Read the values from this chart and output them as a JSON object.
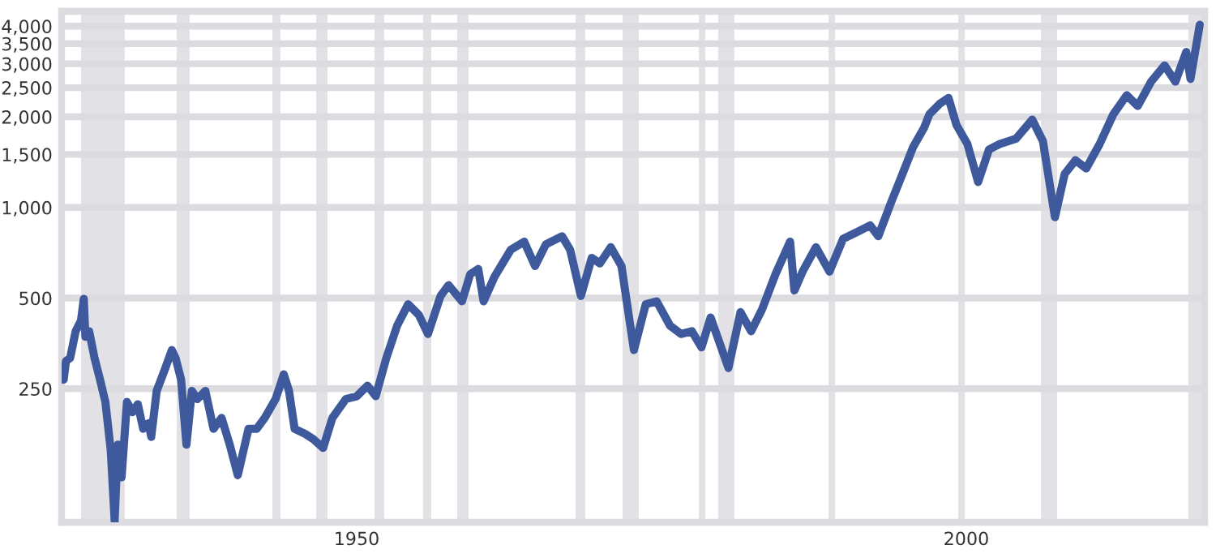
{
  "chart_data": {
    "type": "line",
    "x": [
      1925.97,
      1926.16,
      1926.5,
      1926.95,
      1927.39,
      1927.62,
      1927.75,
      1928.06,
      1928.5,
      1928.95,
      1929.39,
      1929.83,
      1930.15,
      1930.41,
      1930.72,
      1931.16,
      1931.61,
      1932.05,
      1932.49,
      1932.94,
      1933.15,
      1933.6,
      1934.27,
      1934.84,
      1935.15,
      1935.6,
      1936.04,
      1936.48,
      1936.93,
      1937.59,
      1938.26,
      1938.92,
      1939.59,
      1940.25,
      1941.13,
      1941.8,
      1942.46,
      1943.35,
      1944.02,
      1944.45,
      1944.91,
      1945.78,
      1946.45,
      1947.25,
      1948.01,
      1949.11,
      1950,
      1950.89,
      1951.56,
      1952.43,
      1953.32,
      1954.22,
      1955.09,
      1955.85,
      1956.88,
      1957.54,
      1958.64,
      1959.31,
      1959.97,
      1960.41,
      1961.3,
      1962.63,
      1963.74,
      1964.63,
      1965.52,
      1966.85,
      1967.51,
      1968.39,
      1969.28,
      1969.95,
      1970.84,
      1971.72,
      1972.74,
      1973.71,
      1974.6,
      1975.7,
      1976.6,
      1977.49,
      1978.28,
      1979.03,
      1980.49,
      1981.48,
      1982.35,
      1983.24,
      1984.35,
      1985.55,
      1985.9,
      1986.57,
      1987.67,
      1988.78,
      1989.89,
      1991.22,
      1992.11,
      1992.78,
      1993.88,
      1994.77,
      1995.65,
      1996.54,
      1996.98,
      1997.87,
      1998.54,
      1999.2,
      2000.09,
      2000.97,
      2001.86,
      2002.75,
      2004.08,
      2005.41,
      2006.29,
      2007.27,
      2008.07,
      2008.95,
      2009.84,
      2010.94,
      2012.06,
      2013.16,
      2014.06,
      2015.16,
      2016.26,
      2017.15,
      2018.04,
      2018.39,
      2019.15
    ],
    "series": [
      {
        "color": "#3f5a9c",
        "values": [
          268,
          309,
          316,
          388,
          421,
          497,
          372,
          388,
          316,
          268,
          226,
          156,
          91,
          163,
          127,
          226,
          209,
          222,
          184,
          192,
          173,
          246,
          290,
          336,
          316,
          268,
          163,
          246,
          231,
          246,
          184,
          200,
          163,
          129,
          184,
          184,
          200,
          231,
          279,
          246,
          184,
          177,
          170,
          159,
          200,
          231,
          236,
          256,
          236,
          316,
          405,
          477,
          440,
          380,
          508,
          552,
          488,
          600,
          625,
          488,
          588,
          723,
          770,
          639,
          754,
          802,
          723,
          508,
          680,
          652,
          738,
          639,
          336,
          477,
          488,
          405,
          380,
          388,
          343,
          431,
          293,
          449,
          388,
          458,
          600,
          770,
          530,
          612,
          738,
          612,
          786,
          836,
          872,
          802,
          1051,
          1292,
          1591,
          1840,
          2040,
          2218,
          2311,
          1877,
          1625,
          1214,
          1557,
          1625,
          1693,
          1958,
          1658,
          928,
          1292,
          1435,
          1348,
          1625,
          2040,
          2360,
          2171,
          2617,
          2963,
          2617,
          3286,
          2673,
          4045
        ]
      }
    ],
    "log": "y",
    "xlim": [
      1925.8,
      2019.55
    ],
    "xticks": [
      1950,
      2000
    ],
    "ylim": [
      90,
      4480
    ],
    "yticks": [
      250,
      500,
      {
        "value": 1000,
        "label": "1,000"
      },
      {
        "value": 1500,
        "label": "1,500"
      },
      {
        "value": 2000,
        "label": "2,000"
      },
      {
        "value": 2500,
        "label": "2,500"
      },
      {
        "value": 3000,
        "label": "3,000"
      },
      {
        "value": 3500,
        "label": "3,500"
      },
      {
        "value": 4000,
        "label": "4,000"
      }
    ],
    "grid": "y",
    "bands": [
      {
        "axis": "x",
        "from": 1927.39,
        "to": 1930.98,
        "color": "#e2e2e6"
      },
      {
        "axis": "x",
        "from": 1935.24,
        "to": 1936.3,
        "color": "#e2e2e6"
      },
      {
        "axis": "x",
        "from": 1943.09,
        "to": 1943.75,
        "color": "#e2e2e6"
      },
      {
        "axis": "x",
        "from": 1946.68,
        "to": 1947.61,
        "color": "#e2e2e6"
      },
      {
        "axis": "x",
        "from": 1951.46,
        "to": 1952.26,
        "color": "#e2e2e6"
      },
      {
        "axis": "x",
        "from": 1955.45,
        "to": 1956.12,
        "color": "#e2e2e6"
      },
      {
        "axis": "x",
        "from": 1958.24,
        "to": 1959.18,
        "color": "#e2e2e6"
      },
      {
        "axis": "x",
        "from": 1967.95,
        "to": 1968.75,
        "color": "#e2e2e6"
      },
      {
        "axis": "x",
        "from": 1971.81,
        "to": 1973.14,
        "color": "#e2e2e6"
      },
      {
        "axis": "x",
        "from": 1978.06,
        "to": 1978.59,
        "color": "#e2e2e6"
      },
      {
        "axis": "x",
        "from": 1979.65,
        "to": 1980.98,
        "color": "#e2e2e6"
      },
      {
        "axis": "x",
        "from": 1988.7,
        "to": 1989.23,
        "color": "#e2e2e6"
      },
      {
        "axis": "x",
        "from": 1999.34,
        "to": 1999.87,
        "color": "#e2e2e6"
      },
      {
        "axis": "x",
        "from": 2006.12,
        "to": 2007.45,
        "color": "#e2e2e6"
      },
      {
        "axis": "x",
        "from": 2018.22,
        "to": 2019.28,
        "color": "#e2e2e6"
      }
    ]
  }
}
